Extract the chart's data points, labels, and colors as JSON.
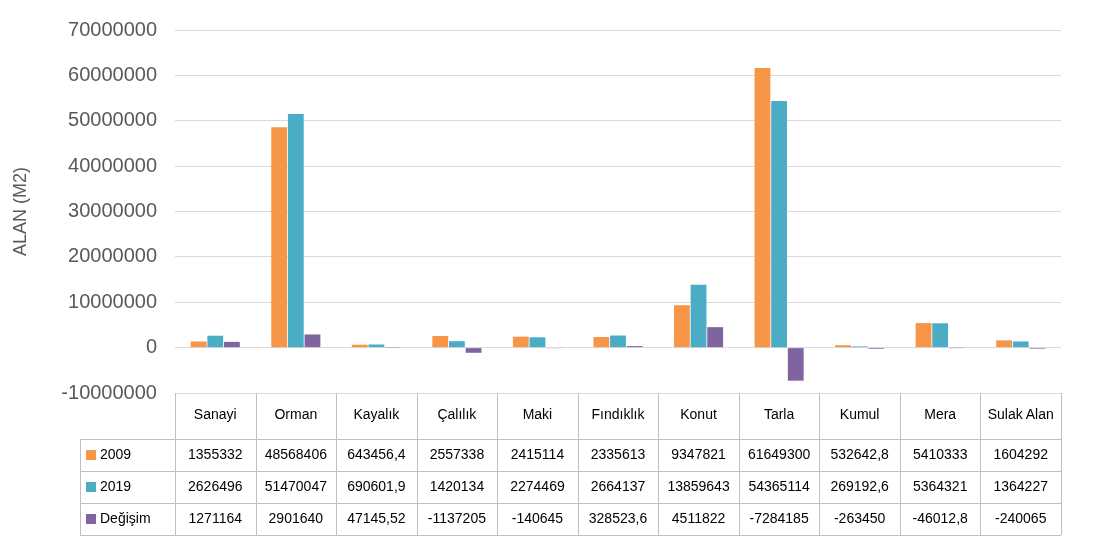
{
  "chart_data": {
    "type": "bar",
    "ylabel": "ALAN (M2)",
    "categories": [
      "Sanayi",
      "Orman",
      "Kayalık",
      "Çalılık",
      "Maki",
      "Fındıklık",
      "Konut",
      "Tarla",
      "Kumul",
      "Mera",
      "Sulak Alan"
    ],
    "series": [
      {
        "name": "2009",
        "color": "#f79646",
        "values": [
          1355332,
          48568406,
          643456.4,
          2557338,
          2415114,
          2335613,
          9347821,
          61649300,
          532642.8,
          5410333,
          1604292
        ],
        "value_labels": [
          "1355332",
          "48568406",
          "643456,4",
          "2557338",
          "2415114",
          "2335613",
          "9347821",
          "61649300",
          "532642,8",
          "5410333",
          "1604292"
        ]
      },
      {
        "name": "2019",
        "color": "#4bacc6",
        "values": [
          2626496,
          51470047,
          690601.9,
          1420134,
          2274469,
          2664137,
          13859643,
          54365114,
          269192.6,
          5364321,
          1364227
        ],
        "value_labels": [
          "2626496",
          "51470047",
          "690601,9",
          "1420134",
          "2274469",
          "2664137",
          "13859643",
          "54365114",
          "269192,6",
          "5364321",
          "1364227"
        ]
      },
      {
        "name": "Değişim",
        "color": "#8064a2",
        "values": [
          1271164,
          2901640,
          47145.52,
          -1137205,
          -140645,
          328523.6,
          4511822,
          -7284185,
          -263450,
          -46012.8,
          -240065
        ],
        "value_labels": [
          "1271164",
          "2901640",
          "47145,52",
          "-1137205",
          "-140645",
          "328523,6",
          "4511822",
          "-7284185",
          "-263450",
          "-46012,8",
          "-240065"
        ]
      }
    ],
    "ylim": [
      -10000000,
      70000000
    ],
    "yticks": [
      -10000000,
      0,
      10000000,
      20000000,
      30000000,
      40000000,
      50000000,
      60000000,
      70000000
    ],
    "grid": "y",
    "legend": "bottom"
  }
}
